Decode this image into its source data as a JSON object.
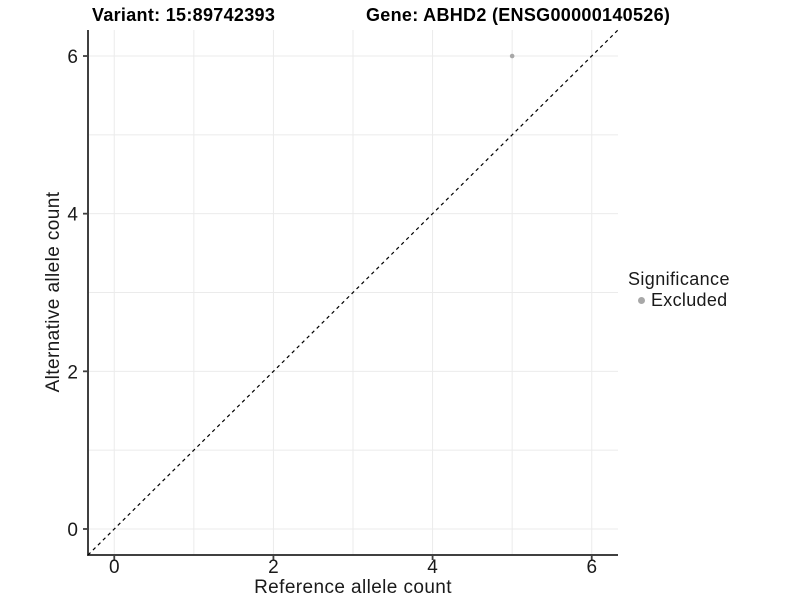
{
  "chart_data": {
    "type": "scatter",
    "title_left": "Variant: 15:89742393",
    "title_right": "Gene: ABHD2 (ENSG00000140526)",
    "xlabel": "Reference allele count",
    "ylabel": "Alternative allele count",
    "xlim": [
      -0.33,
      6.33
    ],
    "ylim": [
      -0.33,
      6.33
    ],
    "x_ticks": [
      0,
      2,
      4,
      6
    ],
    "y_ticks": [
      0,
      2,
      4,
      6
    ],
    "x_minor_gridlines": [
      1,
      3,
      5
    ],
    "y_minor_gridlines": [
      1,
      3,
      5
    ],
    "grid": true,
    "reference_line": {
      "type": "identity y=x",
      "style": "dashed",
      "color": "#000000"
    },
    "series": [
      {
        "name": "Excluded",
        "color": "#a8a8a8",
        "points": [
          [
            5,
            6
          ]
        ]
      }
    ],
    "legend": {
      "title": "Significance",
      "position": "right",
      "entries": [
        {
          "label": "Excluded",
          "color": "#a8a8a8"
        }
      ]
    },
    "colors": {
      "axis_line": "#404040",
      "gridline": "#ebebeb",
      "tick_label": "#1a1a1a",
      "point": "#a8a8a8"
    }
  }
}
